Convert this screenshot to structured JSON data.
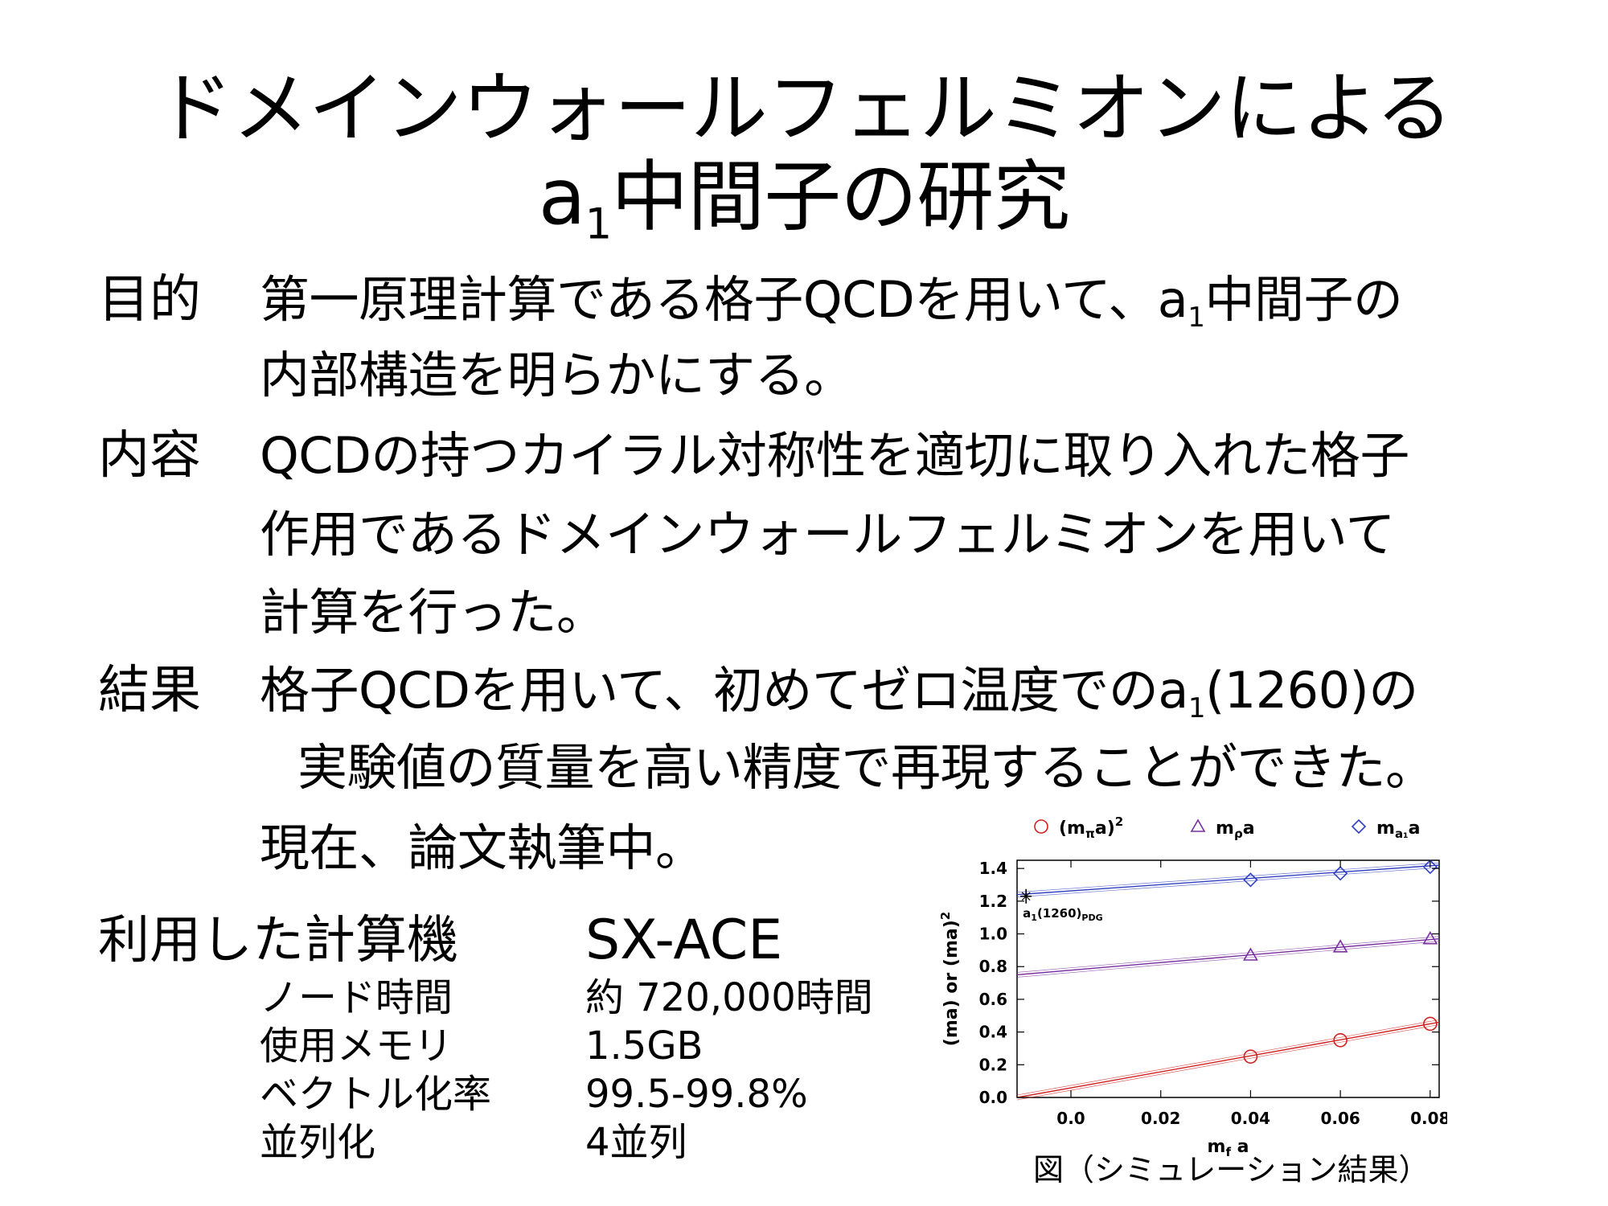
{
  "title": {
    "line1": "ドメインウォールフェルミオンによる",
    "line2_prefix": "a",
    "line2_sub": "1",
    "line2_rest": "中間子の研究"
  },
  "purpose": {
    "label": "目的",
    "line1_a": "第一原理計算である格子QCDを用いて、a",
    "line1_sub": "1",
    "line1_b": "中間子の",
    "line2": "内部構造を明らかにする。"
  },
  "content": {
    "label": "内容",
    "line1": "QCDの持つカイラル対称性を適切に取り入れた格子",
    "line2": "作用であるドメインウォールフェルミオンを用いて",
    "line3": "計算を行った。"
  },
  "result": {
    "label": "結果",
    "line1_a": "格子QCDを用いて、初めてゼロ温度でのa",
    "line1_sub": "1",
    "line1_b": "(1260)の",
    "line2": "実験値の質量を高い精度で再現することができた。",
    "line3": "現在、論文執筆中。"
  },
  "computer": {
    "label": "利用した計算機",
    "name": "SX-ACE",
    "specs": [
      {
        "label": "ノード時間",
        "value": "約 720,000時間"
      },
      {
        "label": "使用メモリ",
        "value": "1.5GB"
      },
      {
        "label": "ベクトル化率",
        "value": "99.5-99.8%"
      },
      {
        "label": "並列化",
        "value": "4並列"
      }
    ]
  },
  "figure_caption": "図（シミュレーション結果）",
  "chart_data": {
    "type": "scatter",
    "xlabel_main": "m",
    "xlabel_sub": "f",
    "xlabel_tail": " a",
    "ylabel": "(ma) or (ma)",
    "ylabel_sup": "2",
    "xlim": [
      -0.012,
      0.082
    ],
    "ylim": [
      0.0,
      1.45
    ],
    "xticks": [
      "0.0",
      "0.02",
      "0.04",
      "0.06",
      "0.08"
    ],
    "xtick_values": [
      0.0,
      0.02,
      0.04,
      0.06,
      0.08
    ],
    "yticks": [
      "0.0",
      "0.2",
      "0.4",
      "0.6",
      "0.8",
      "1.0",
      "1.2",
      "1.4"
    ],
    "ytick_values": [
      0.0,
      0.2,
      0.4,
      0.6,
      0.8,
      1.0,
      1.2,
      1.4
    ],
    "grid": false,
    "legend_position": "top",
    "series": [
      {
        "legend_main": "(m",
        "legend_greek": "π",
        "legend_tail": "a)",
        "legend_sup": "2",
        "marker": "circle",
        "color": "#d02020",
        "x": [
          0.04,
          0.06,
          0.08
        ],
        "y": [
          0.25,
          0.35,
          0.45
        ],
        "fit": {
          "x": [
            -0.012,
            0.082
          ],
          "y": [
            0.0,
            0.46
          ]
        }
      },
      {
        "legend_main": "m",
        "legend_greek": "ρ",
        "legend_tail": "a",
        "legend_sup": "",
        "marker": "triangle",
        "color": "#7a2fa0",
        "x": [
          0.04,
          0.06,
          0.08
        ],
        "y": [
          0.87,
          0.92,
          0.97
        ],
        "fit": {
          "x": [
            -0.012,
            0.082
          ],
          "y": [
            0.75,
            0.97
          ]
        }
      },
      {
        "legend_main": "m",
        "legend_greek": "a₁",
        "legend_tail": "a",
        "legend_sup": "",
        "marker": "diamond",
        "color": "#3040c0",
        "x": [
          0.04,
          0.06,
          0.08
        ],
        "y": [
          1.33,
          1.37,
          1.41
        ],
        "fit": {
          "x": [
            -0.012,
            0.082
          ],
          "y": [
            1.24,
            1.42
          ]
        }
      }
    ],
    "annotation": {
      "label_main": "a",
      "label_sub1": "1",
      "label_mid": "(1260)",
      "label_sub2": "PDG",
      "x": -0.01,
      "y": 1.23
    }
  }
}
